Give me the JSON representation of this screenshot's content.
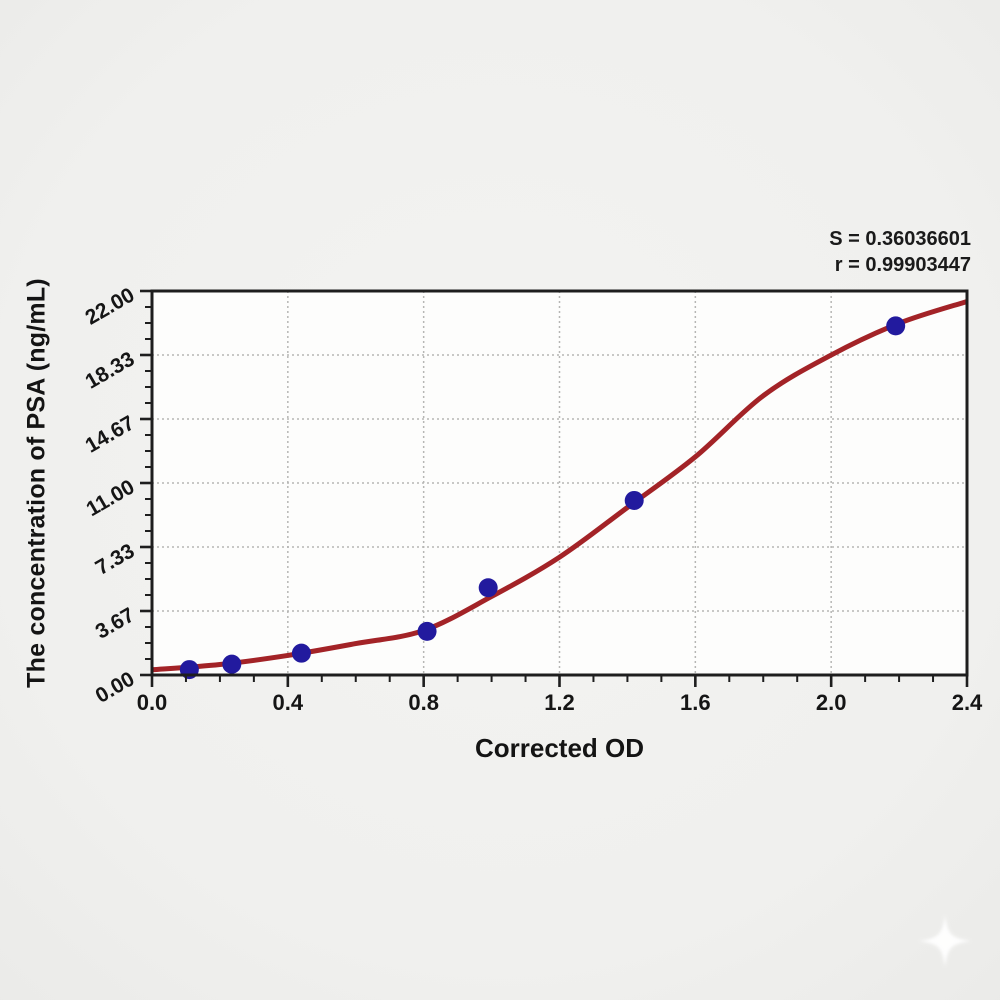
{
  "chart_data": {
    "type": "scatter",
    "title": "",
    "xlabel": "Corrected OD",
    "ylabel": "The concentration of PSA (ng/mL)",
    "xlim": [
      0,
      2.4
    ],
    "ylim": [
      0,
      22
    ],
    "x_tick_labels": [
      "0.0",
      "0.4",
      "0.8",
      "1.2",
      "1.6",
      "2.0",
      "2.4"
    ],
    "x_tick_values": [
      0,
      0.4,
      0.8,
      1.2,
      1.6,
      2.0,
      2.4
    ],
    "x_minor_tick_step": 0.1,
    "y_tick_labels": [
      "0.00",
      "3.67",
      "7.33",
      "11.00",
      "14.67",
      "18.33",
      "22.00"
    ],
    "y_tick_values": [
      0,
      3.6667,
      7.3333,
      11,
      14.6667,
      18.3333,
      22
    ],
    "y_minor_per_major": 4,
    "grid": "dotted lines at major ticks, plot framed on all four sides",
    "legend_position": "none",
    "series": [
      {
        "name": "standard-points",
        "type": "scatter",
        "points": [
          [
            0.11,
            0.31
          ],
          [
            0.235,
            0.62
          ],
          [
            0.44,
            1.25
          ],
          [
            0.81,
            2.5
          ],
          [
            0.99,
            5.0
          ],
          [
            1.42,
            10.0
          ],
          [
            2.19,
            20.0
          ]
        ]
      },
      {
        "name": "fitted-sigmoid-curve",
        "type": "line",
        "points": [
          [
            0,
            0.3
          ],
          [
            0.2,
            0.6
          ],
          [
            0.4,
            1.12
          ],
          [
            0.6,
            1.8
          ],
          [
            0.8,
            2.55
          ],
          [
            1.0,
            4.5
          ],
          [
            1.2,
            6.75
          ],
          [
            1.4,
            9.6
          ],
          [
            1.6,
            12.5
          ],
          [
            1.8,
            16.0
          ],
          [
            2.0,
            18.33
          ],
          [
            2.2,
            20.15
          ],
          [
            2.4,
            21.4
          ]
        ]
      }
    ],
    "stats": {
      "S": "0.36036601",
      "r": "0.99903447"
    },
    "annotation_lines": [
      "S = 0.36036601",
      "r = 0.99903447"
    ],
    "colors": {
      "curve": "#a32327",
      "point": "#221a9e",
      "frame": "#1e1e1e",
      "grid": "#b6b6b4",
      "plot_bg": "#fdfdfc",
      "text": "#151515",
      "page_bg": "#f0f0ee"
    }
  },
  "watermark": {
    "icon": "sparkle",
    "color": "#ffffff"
  }
}
